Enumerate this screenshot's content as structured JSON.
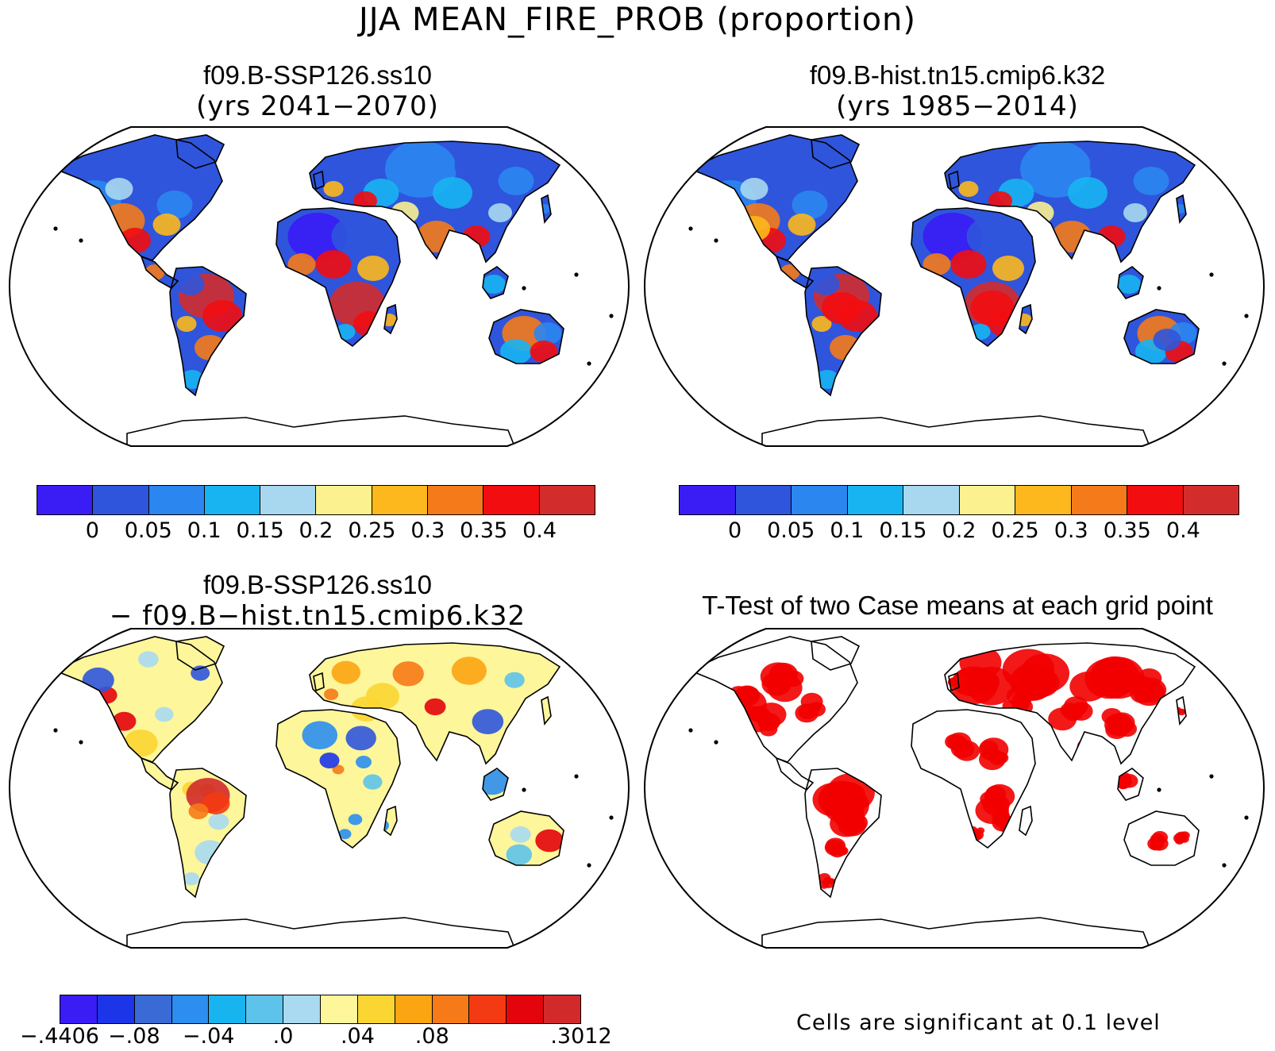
{
  "figure": {
    "title": "JJA MEAN_FIRE_PROB (proportion)"
  },
  "panels": [
    {
      "id": "top-left",
      "title": "f09.B-SSP126.ss10",
      "subtitle": "(yrs 2041−2070)",
      "colorbar": {
        "colors": [
          "#3a1cf5",
          "#2f55dc",
          "#2b86ef",
          "#18b4f1",
          "#a8d8f0",
          "#fbf18f",
          "#fcb81c",
          "#f57a1a",
          "#f20d10",
          "#d32c2c"
        ],
        "labels": [
          "0",
          "0.05",
          "0.1",
          "0.15",
          "0.2",
          "0.25",
          "0.3",
          "0.35",
          "0.4"
        ]
      }
    },
    {
      "id": "top-right",
      "title": "f09.B-hist.tn15.cmip6.k32",
      "subtitle": "(yrs 1985−2014)",
      "colorbar": {
        "colors": [
          "#3a1cf5",
          "#2f55dc",
          "#2b86ef",
          "#18b4f1",
          "#a8d8f0",
          "#fbf18f",
          "#fcb81c",
          "#f57a1a",
          "#f20d10",
          "#d32c2c"
        ],
        "labels": [
          "0",
          "0.05",
          "0.1",
          "0.15",
          "0.2",
          "0.25",
          "0.3",
          "0.35",
          "0.4"
        ]
      }
    },
    {
      "id": "bottom-left",
      "title": "f09.B-SSP126.ss10",
      "subtitle": "− f09.B−hist.tn15.cmip6.k32",
      "colorbar": {
        "colors": [
          "#3a1cf5",
          "#1d35e8",
          "#3a6ad6",
          "#2b8ef0",
          "#17b4f0",
          "#5ec3ea",
          "#a9daf2",
          "#fdf69a",
          "#fbd632",
          "#fca512",
          "#f67a18",
          "#f33a12",
          "#e3040c",
          "#d22a2a"
        ],
        "labels": [
          "−.4406",
          "−.08",
          "−.04",
          ".0",
          ".04",
          ".08",
          ".3012"
        ]
      }
    },
    {
      "id": "bottom-right",
      "title": "T-Test of two Case means at each grid point",
      "note": "Cells are significant at 0.1 level",
      "significance_color": "#f20000"
    }
  ]
}
